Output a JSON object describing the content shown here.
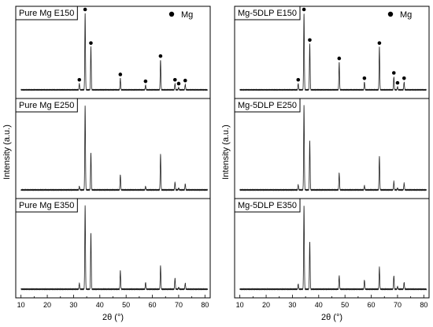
{
  "chart_data": {
    "type": "line",
    "xlabel": "2θ (°)",
    "ylabel": "Intensity (a.u.)",
    "xlim": [
      8,
      82
    ],
    "x_ticks": [
      10,
      20,
      30,
      40,
      50,
      60,
      70,
      80
    ],
    "legend": {
      "symbol": "filled-circle",
      "label": "Mg",
      "placement": "top-right"
    },
    "marker_positions": [
      32.2,
      34.4,
      36.6,
      47.8,
      57.4,
      63.1,
      68.6,
      70.0,
      72.5
    ],
    "columns": [
      {
        "panels": [
          {
            "label": "Pure Mg E150",
            "markers": true,
            "peaks": [
              [
                32.2,
                0.08
              ],
              [
                34.4,
                1.0
              ],
              [
                36.6,
                0.56
              ],
              [
                47.8,
                0.15
              ],
              [
                57.4,
                0.06
              ],
              [
                63.1,
                0.39
              ],
              [
                68.6,
                0.08
              ],
              [
                70.0,
                0.03
              ],
              [
                72.5,
                0.07
              ]
            ]
          },
          {
            "label": "Pure Mg E250",
            "markers": false,
            "peaks": [
              [
                32.2,
                0.04
              ],
              [
                34.4,
                1.0
              ],
              [
                36.6,
                0.44
              ],
              [
                47.8,
                0.18
              ],
              [
                57.4,
                0.04
              ],
              [
                63.1,
                0.42
              ],
              [
                68.6,
                0.09
              ],
              [
                70.0,
                0.02
              ],
              [
                72.5,
                0.07
              ]
            ]
          },
          {
            "label": "Pure Mg E350",
            "markers": false,
            "peaks": [
              [
                32.2,
                0.07
              ],
              [
                34.4,
                1.0
              ],
              [
                36.6,
                0.67
              ],
              [
                47.8,
                0.22
              ],
              [
                57.4,
                0.08
              ],
              [
                63.1,
                0.28
              ],
              [
                68.6,
                0.13
              ],
              [
                70.0,
                0.02
              ],
              [
                72.5,
                0.07
              ]
            ]
          }
        ]
      },
      {
        "panels": [
          {
            "label": "Mg-5DLP E150",
            "markers": true,
            "peaks": [
              [
                32.2,
                0.08
              ],
              [
                34.4,
                1.0
              ],
              [
                36.6,
                0.6
              ],
              [
                47.8,
                0.36
              ],
              [
                57.4,
                0.1
              ],
              [
                63.1,
                0.56
              ],
              [
                68.6,
                0.17
              ],
              [
                70.0,
                0.04
              ],
              [
                72.5,
                0.1
              ]
            ]
          },
          {
            "label": "Mg-5DLP E250",
            "markers": false,
            "peaks": [
              [
                32.2,
                0.06
              ],
              [
                34.4,
                1.0
              ],
              [
                36.6,
                0.58
              ],
              [
                47.8,
                0.2
              ],
              [
                57.4,
                0.05
              ],
              [
                63.1,
                0.4
              ],
              [
                68.6,
                0.1
              ],
              [
                70.0,
                0.02
              ],
              [
                72.5,
                0.08
              ]
            ]
          },
          {
            "label": "Mg-5DLP E350",
            "markers": false,
            "peaks": [
              [
                32.2,
                0.06
              ],
              [
                34.4,
                1.0
              ],
              [
                36.6,
                0.57
              ],
              [
                47.8,
                0.16
              ],
              [
                57.4,
                0.11
              ],
              [
                63.1,
                0.26
              ],
              [
                68.6,
                0.16
              ],
              [
                70.0,
                0.03
              ],
              [
                72.5,
                0.08
              ]
            ]
          }
        ]
      }
    ]
  }
}
